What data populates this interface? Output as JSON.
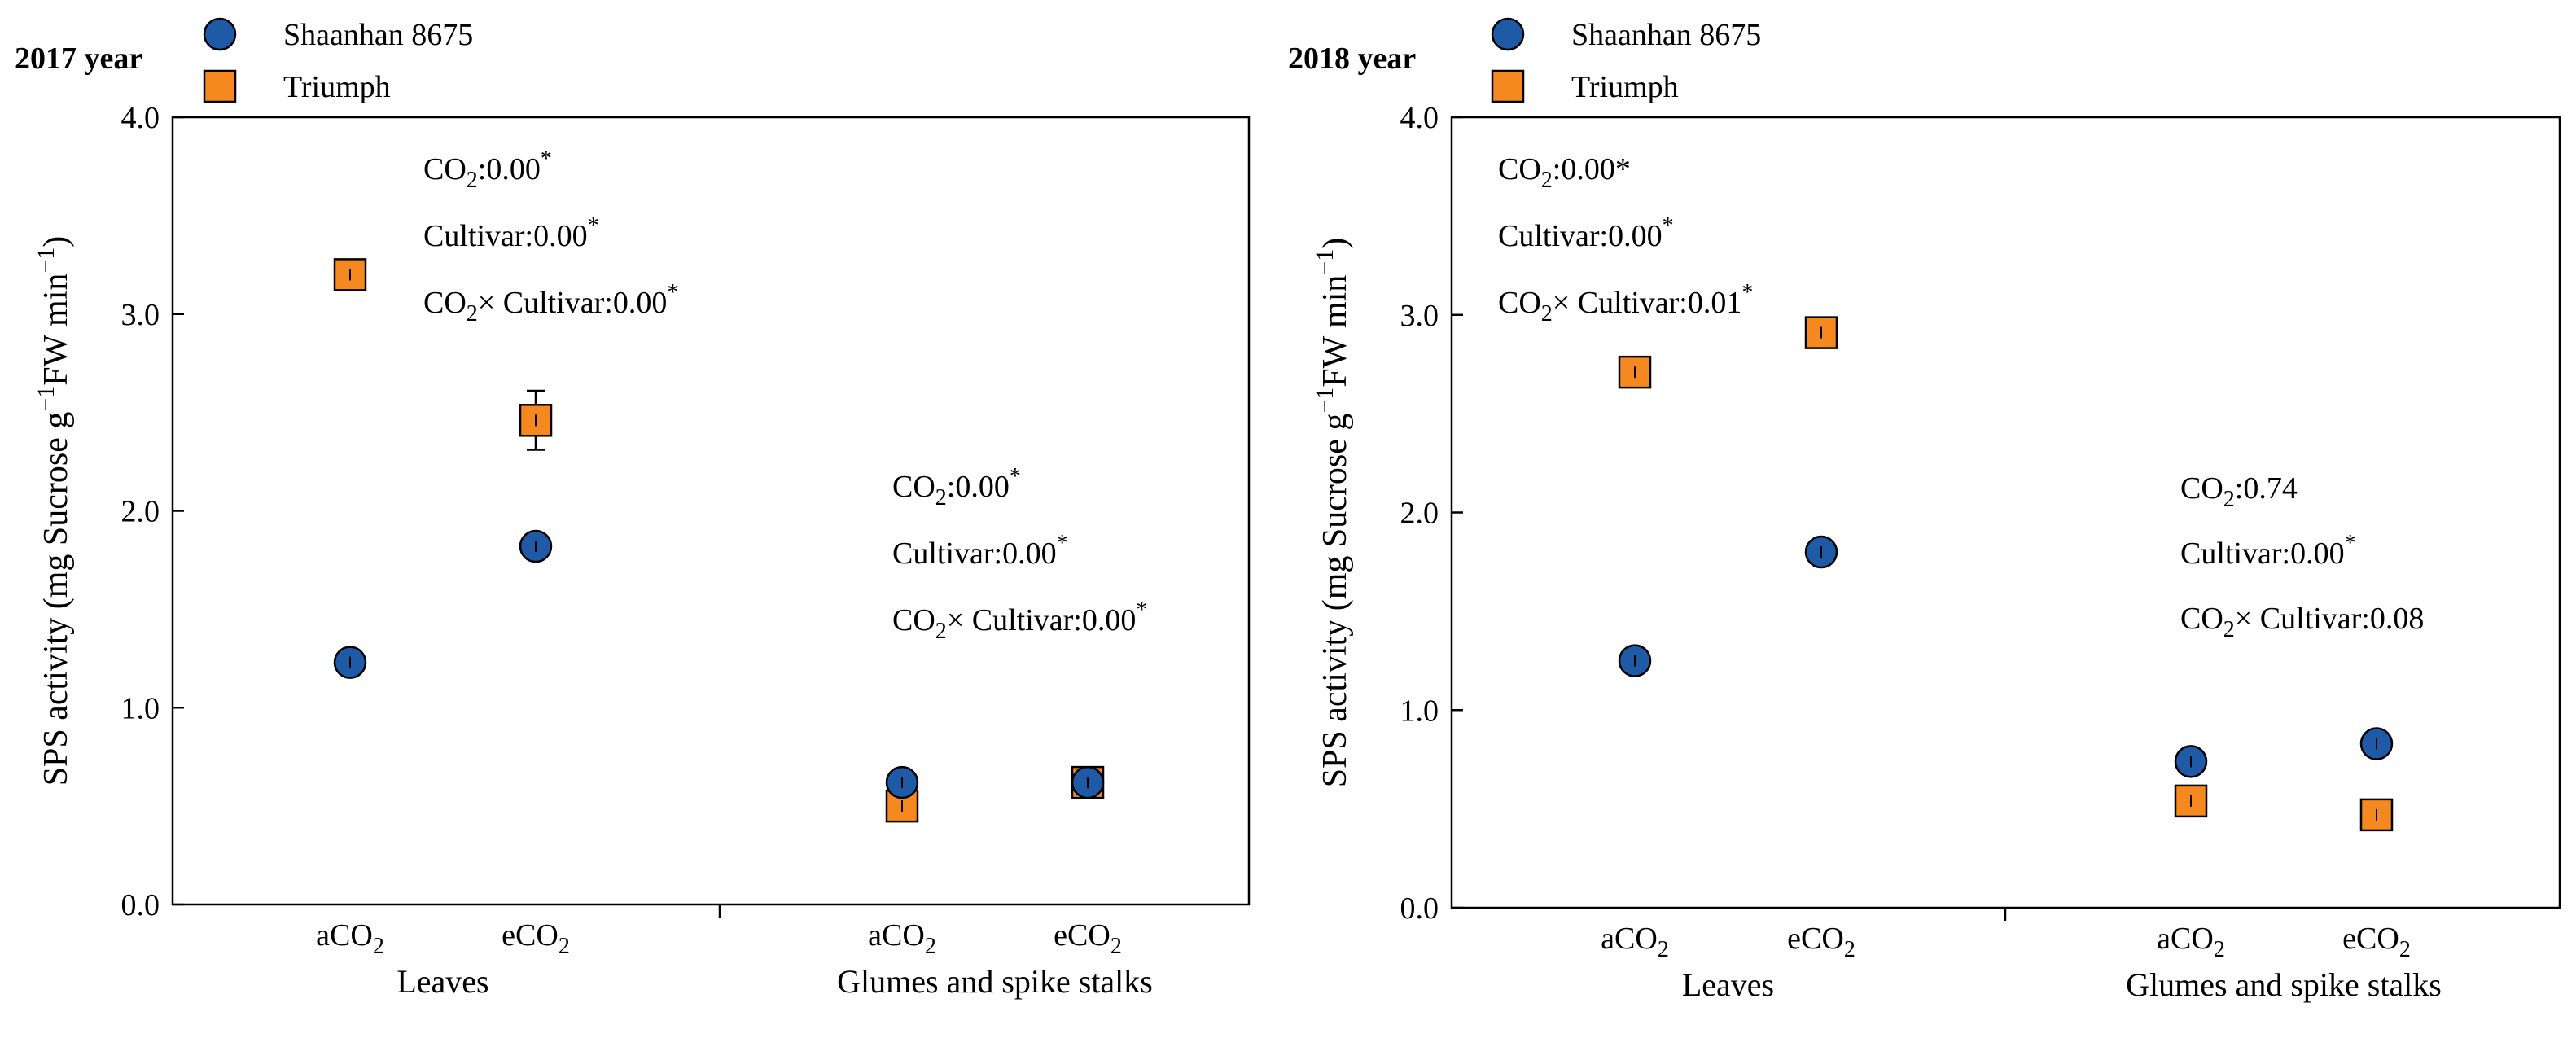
{
  "colors": {
    "shaanhan": "#1f5aa6",
    "triumph": "#f5891f",
    "axis": "#000000"
  },
  "legend": {
    "series": [
      {
        "name": "Shaanhan 8675",
        "marker": "circle"
      },
      {
        "name": "Triumph",
        "marker": "square"
      }
    ]
  },
  "chart_data": [
    {
      "type": "scatter",
      "title": "2017 year",
      "ylabel_parts": {
        "prefix": "SPS activity (mg Sucrose g",
        "sup1": "−1",
        "middle": "FW min",
        "sup2": "−1",
        "suffix": ")"
      },
      "ylim": [
        0,
        4
      ],
      "yticks": [
        "0.0",
        "1.0",
        "2.0",
        "3.0",
        "4.0"
      ],
      "groups": [
        {
          "name": "Leaves",
          "categories": [
            {
              "base": "aCO",
              "sub": "2"
            },
            {
              "base": "eCO",
              "sub": "2"
            }
          ]
        },
        {
          "name": "Glumes and spike stalks",
          "categories": [
            {
              "base": "aCO",
              "sub": "2"
            },
            {
              "base": "eCO",
              "sub": "2"
            }
          ]
        }
      ],
      "series": [
        {
          "name": "Shaanhan 8675",
          "values": [
            1.23,
            1.82,
            0.62,
            0.62
          ],
          "errors": [
            0.04,
            0.05,
            0.03,
            0.03
          ]
        },
        {
          "name": "Triumph",
          "values": [
            3.2,
            2.46,
            0.5,
            0.62
          ],
          "errors": [
            0.05,
            0.15,
            0.04,
            0.04
          ]
        }
      ],
      "annotations": [
        {
          "group": 0,
          "lines": [
            {
              "parts": [
                {
                  "t": "CO"
                },
                {
                  "t": "2",
                  "sub": true
                },
                {
                  "t": ":0.00"
                },
                {
                  "t": "*",
                  "sup": true
                }
              ]
            },
            {
              "parts": [
                {
                  "t": "Cultivar:0.00"
                },
                {
                  "t": "*",
                  "sup": true
                }
              ]
            },
            {
              "parts": [
                {
                  "t": "CO"
                },
                {
                  "t": "2",
                  "sub": true
                },
                {
                  "t": "×  Cultivar:0.00"
                },
                {
                  "t": "*",
                  "sup": true
                }
              ]
            }
          ]
        },
        {
          "group": 1,
          "lines": [
            {
              "parts": [
                {
                  "t": "CO"
                },
                {
                  "t": "2",
                  "sub": true
                },
                {
                  "t": ":0.00"
                },
                {
                  "t": "*",
                  "sup": true
                }
              ]
            },
            {
              "parts": [
                {
                  "t": "Cultivar:0.00"
                },
                {
                  "t": "*",
                  "sup": true
                }
              ]
            },
            {
              "parts": [
                {
                  "t": "CO"
                },
                {
                  "t": "2",
                  "sub": true
                },
                {
                  "t": "×  Cultivar:0.00"
                },
                {
                  "t": "*",
                  "sup": true
                }
              ]
            }
          ]
        }
      ]
    },
    {
      "type": "scatter",
      "title": "2018 year",
      "ylabel_parts": {
        "prefix": "SPS activity (mg Sucrose g",
        "sup1": "−1",
        "middle": "FW min",
        "sup2": "−1",
        "suffix": ")"
      },
      "ylim": [
        0,
        4
      ],
      "yticks": [
        "0.0",
        "1.0",
        "2.0",
        "3.0",
        "4.0"
      ],
      "groups": [
        {
          "name": "Leaves",
          "categories": [
            {
              "base": "aCO",
              "sub": "2"
            },
            {
              "base": "eCO",
              "sub": "2"
            }
          ]
        },
        {
          "name": "Glumes and spike stalks",
          "categories": [
            {
              "base": "aCO",
              "sub": "2"
            },
            {
              "base": "eCO",
              "sub": "2"
            }
          ]
        }
      ],
      "series": [
        {
          "name": "Shaanhan 8675",
          "values": [
            1.25,
            1.8,
            0.74,
            0.83
          ],
          "errors": [
            0.03,
            0.04,
            0.03,
            0.04
          ]
        },
        {
          "name": "Triumph",
          "values": [
            2.71,
            2.91,
            0.54,
            0.47
          ],
          "errors": [
            0.05,
            0.06,
            0.04,
            0.04
          ]
        }
      ],
      "annotations": [
        {
          "group": 0,
          "lines": [
            {
              "parts": [
                {
                  "t": "CO"
                },
                {
                  "t": "2",
                  "sub": true
                },
                {
                  "t": ":0.00*"
                }
              ]
            },
            {
              "parts": [
                {
                  "t": "Cultivar:0.00"
                },
                {
                  "t": "*",
                  "sup": true
                }
              ]
            },
            {
              "parts": [
                {
                  "t": "CO"
                },
                {
                  "t": "2",
                  "sub": true
                },
                {
                  "t": "×  Cultivar:0.01"
                },
                {
                  "t": "*",
                  "sup": true
                }
              ]
            }
          ]
        },
        {
          "group": 1,
          "lines": [
            {
              "parts": [
                {
                  "t": "CO"
                },
                {
                  "t": "2",
                  "sub": true
                },
                {
                  "t": ":0.74"
                }
              ]
            },
            {
              "parts": [
                {
                  "t": "Cultivar:0.00"
                },
                {
                  "t": "*",
                  "sup": true
                }
              ]
            },
            {
              "parts": [
                {
                  "t": "CO"
                },
                {
                  "t": "2",
                  "sub": true
                },
                {
                  "t": "×  Cultivar:0.08"
                }
              ]
            }
          ]
        }
      ]
    }
  ]
}
